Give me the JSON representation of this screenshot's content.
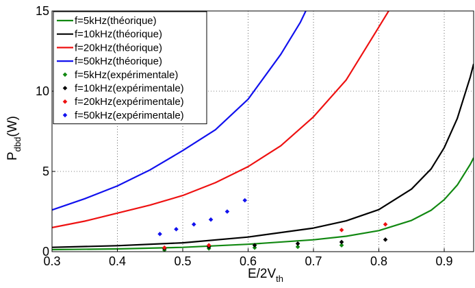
{
  "chart_data": {
    "type": "line",
    "xlabel": {
      "main": "E/2V",
      "sub": "th"
    },
    "ylabel": {
      "main": "P",
      "sub": "dbd",
      "suffix": "(W)"
    },
    "xlim": [
      0.3,
      0.945
    ],
    "ylim": [
      0,
      15
    ],
    "x_ticks": [
      0.3,
      0.4,
      0.5,
      0.6,
      0.7,
      0.8,
      0.9
    ],
    "x_tick_labels": [
      "0.3",
      "0.4",
      "0.5",
      "0.6",
      "0.7",
      "0.8",
      "0.9"
    ],
    "y_ticks": [
      0,
      5,
      10,
      15
    ],
    "y_tick_labels": [
      "0",
      "5",
      "10",
      "15"
    ],
    "grid": "dotted",
    "legend_position": "top-left",
    "series": [
      {
        "name": "f=5kHz(théorique)",
        "kind": "line",
        "color": "#118811",
        "x": [
          0.3,
          0.4,
          0.5,
          0.6,
          0.7,
          0.75,
          0.8,
          0.85,
          0.88,
          0.9,
          0.92,
          0.94,
          0.945
        ],
        "y": [
          0.13,
          0.17,
          0.27,
          0.46,
          0.74,
          0.96,
          1.31,
          1.95,
          2.58,
          3.24,
          4.15,
          5.45,
          5.85
        ]
      },
      {
        "name": "f=10kHz(théorique)",
        "kind": "line",
        "color": "#000000",
        "x": [
          0.3,
          0.4,
          0.5,
          0.6,
          0.7,
          0.75,
          0.8,
          0.85,
          0.88,
          0.9,
          0.92,
          0.94,
          0.945
        ],
        "y": [
          0.27,
          0.37,
          0.55,
          0.91,
          1.47,
          1.92,
          2.62,
          3.9,
          5.16,
          6.48,
          8.3,
          10.9,
          11.7
        ]
      },
      {
        "name": "f=20kHz(théorique)",
        "kind": "line",
        "color": "#ee1111",
        "x": [
          0.3,
          0.35,
          0.4,
          0.45,
          0.5,
          0.55,
          0.6,
          0.65,
          0.7,
          0.75,
          0.8,
          0.83,
          0.85
        ],
        "y": [
          1.5,
          1.9,
          2.4,
          2.9,
          3.5,
          4.3,
          5.3,
          6.6,
          8.4,
          10.7,
          14.0,
          16.0,
          17.5
        ]
      },
      {
        "name": "f=50kHz(théorique)",
        "kind": "line",
        "color": "#1111ee",
        "x": [
          0.3,
          0.35,
          0.4,
          0.45,
          0.5,
          0.55,
          0.6,
          0.65,
          0.68,
          0.7
        ],
        "y": [
          2.6,
          3.3,
          4.1,
          5.1,
          6.3,
          7.6,
          9.5,
          12.3,
          14.3,
          16.0
        ]
      },
      {
        "name": "f=5kHz(expérimentale)",
        "kind": "scatter",
        "color": "#118811",
        "x": [
          0.472,
          0.54,
          0.61,
          0.676,
          0.743
        ],
        "y": [
          0.1,
          0.2,
          0.25,
          0.3,
          0.4
        ]
      },
      {
        "name": "f=10kHz(expérimentale)",
        "kind": "scatter",
        "color": "#000000",
        "x": [
          0.472,
          0.54,
          0.61,
          0.676,
          0.743,
          0.81
        ],
        "y": [
          0.2,
          0.3,
          0.4,
          0.5,
          0.6,
          0.75
        ]
      },
      {
        "name": "f=20kHz(expérimentale)",
        "kind": "scatter",
        "color": "#ee1111",
        "x": [
          0.472,
          0.54,
          0.743,
          0.81
        ],
        "y": [
          0.25,
          0.4,
          1.35,
          1.7
        ]
      },
      {
        "name": "f=50kHz(expérimentale)",
        "kind": "scatter",
        "color": "#1111ee",
        "x": [
          0.465,
          0.49,
          0.517,
          0.543,
          0.568,
          0.595
        ],
        "y": [
          1.1,
          1.4,
          1.7,
          2.0,
          2.5,
          3.2
        ]
      }
    ]
  }
}
